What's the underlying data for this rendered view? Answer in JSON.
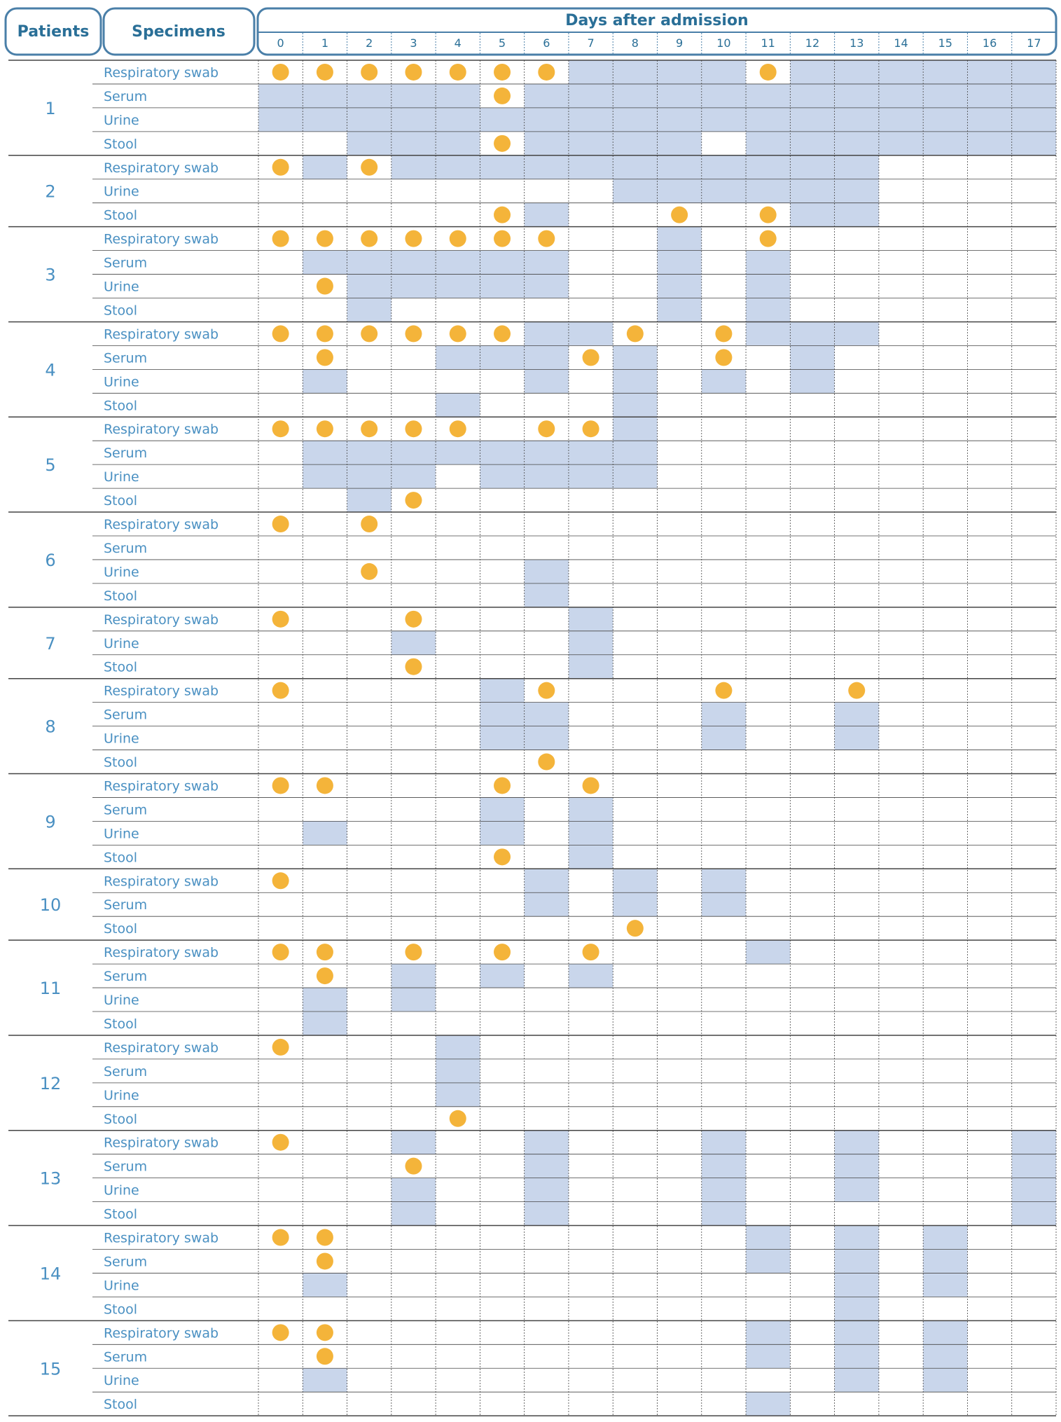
{
  "chart_data": {
    "type": "table",
    "headers": {
      "patients": "Patients",
      "specimens": "Specimens",
      "days_title": "Days after admission"
    },
    "days": [
      "0",
      "1",
      "2",
      "3",
      "4",
      "5",
      "6",
      "7",
      "8",
      "9",
      "10",
      "11",
      "12",
      "13",
      "14",
      "15",
      "16",
      "17"
    ],
    "colors": {
      "header_text": "#2a6f97",
      "label_text": "#4a90c2",
      "shade": "#c9d6eb",
      "dot": "#f4b43a",
      "grid": "#444444",
      "frame": "#4a7fa8"
    },
    "patients": [
      {
        "id": "1",
        "specimens": [
          {
            "name": "Respiratory swab",
            "shaded": [
              7,
              8,
              9,
              10,
              12,
              13,
              14,
              15,
              16,
              17
            ],
            "dots": [
              0,
              1,
              2,
              3,
              4,
              5,
              6,
              11
            ]
          },
          {
            "name": "Serum",
            "shaded": [
              0,
              1,
              2,
              3,
              4,
              6,
              7,
              8,
              9,
              10,
              11,
              12,
              13,
              14,
              15,
              16,
              17
            ],
            "dots": [
              5
            ]
          },
          {
            "name": "Urine",
            "shaded": [
              0,
              1,
              2,
              3,
              4,
              5,
              6,
              7,
              8,
              9,
              10,
              11,
              12,
              13,
              14,
              15,
              16,
              17
            ],
            "dots": []
          },
          {
            "name": "Stool",
            "shaded": [
              2,
              3,
              4,
              6,
              7,
              8,
              9,
              11,
              12,
              13,
              14,
              15,
              16,
              17
            ],
            "dots": [
              5
            ]
          }
        ]
      },
      {
        "id": "2",
        "specimens": [
          {
            "name": "Respiratory swab",
            "shaded": [
              1,
              3,
              4,
              5,
              6,
              7,
              8,
              9,
              10,
              11,
              12,
              13
            ],
            "dots": [
              0,
              2
            ]
          },
          {
            "name": "Urine",
            "shaded": [
              8,
              9,
              10,
              11,
              12,
              13
            ],
            "dots": []
          },
          {
            "name": "Stool",
            "shaded": [
              6,
              12,
              13
            ],
            "dots": [
              5,
              9,
              11
            ]
          }
        ]
      },
      {
        "id": "3",
        "specimens": [
          {
            "name": "Respiratory swab",
            "shaded": [
              9
            ],
            "dots": [
              0,
              1,
              2,
              3,
              4,
              5,
              6,
              11
            ]
          },
          {
            "name": "Serum",
            "shaded": [
              1,
              2,
              3,
              4,
              5,
              6,
              9,
              11
            ],
            "dots": []
          },
          {
            "name": "Urine",
            "shaded": [
              2,
              3,
              4,
              5,
              6,
              9,
              11
            ],
            "dots": [
              1
            ]
          },
          {
            "name": "Stool",
            "shaded": [
              2,
              9,
              11
            ],
            "dots": []
          }
        ]
      },
      {
        "id": "4",
        "specimens": [
          {
            "name": "Respiratory swab",
            "shaded": [
              6,
              7,
              11,
              12,
              13
            ],
            "dots": [
              0,
              1,
              2,
              3,
              4,
              5,
              8,
              10
            ]
          },
          {
            "name": "Serum",
            "shaded": [
              4,
              5,
              6,
              8,
              12
            ],
            "dots": [
              1,
              7,
              10
            ]
          },
          {
            "name": "Urine",
            "shaded": [
              1,
              6,
              8,
              10,
              12
            ],
            "dots": []
          },
          {
            "name": "Stool",
            "shaded": [
              4,
              8
            ],
            "dots": []
          }
        ]
      },
      {
        "id": "5",
        "specimens": [
          {
            "name": "Respiratory swab",
            "shaded": [
              8
            ],
            "dots": [
              0,
              1,
              2,
              3,
              4,
              6,
              7
            ]
          },
          {
            "name": "Serum",
            "shaded": [
              1,
              2,
              3,
              4,
              5,
              6,
              7,
              8
            ],
            "dots": []
          },
          {
            "name": "Urine",
            "shaded": [
              1,
              2,
              3,
              5,
              6,
              7,
              8
            ],
            "dots": []
          },
          {
            "name": "Stool",
            "shaded": [
              2
            ],
            "dots": [
              3
            ]
          }
        ]
      },
      {
        "id": "6",
        "specimens": [
          {
            "name": "Respiratory swab",
            "shaded": [],
            "dots": [
              0,
              2
            ]
          },
          {
            "name": "Serum",
            "shaded": [],
            "dots": []
          },
          {
            "name": "Urine",
            "shaded": [
              6
            ],
            "dots": [
              2
            ]
          },
          {
            "name": "Stool",
            "shaded": [
              6
            ],
            "dots": []
          }
        ]
      },
      {
        "id": "7",
        "specimens": [
          {
            "name": "Respiratory swab",
            "shaded": [
              7
            ],
            "dots": [
              0,
              3
            ]
          },
          {
            "name": "Urine",
            "shaded": [
              3,
              7
            ],
            "dots": []
          },
          {
            "name": "Stool",
            "shaded": [
              7
            ],
            "dots": [
              3
            ]
          }
        ]
      },
      {
        "id": "8",
        "specimens": [
          {
            "name": "Respiratory swab",
            "shaded": [
              5
            ],
            "dots": [
              0,
              6,
              10,
              13
            ]
          },
          {
            "name": "Serum",
            "shaded": [
              5,
              6,
              10,
              13
            ],
            "dots": []
          },
          {
            "name": "Urine",
            "shaded": [
              5,
              6,
              10,
              13
            ],
            "dots": []
          },
          {
            "name": "Stool",
            "shaded": [],
            "dots": [
              6
            ]
          }
        ]
      },
      {
        "id": "9",
        "specimens": [
          {
            "name": "Respiratory swab",
            "shaded": [],
            "dots": [
              0,
              1,
              5,
              7
            ]
          },
          {
            "name": "Serum",
            "shaded": [
              5,
              7
            ],
            "dots": []
          },
          {
            "name": "Urine",
            "shaded": [
              1,
              5,
              7
            ],
            "dots": []
          },
          {
            "name": "Stool",
            "shaded": [
              7
            ],
            "dots": [
              5
            ]
          }
        ]
      },
      {
        "id": "10",
        "specimens": [
          {
            "name": "Respiratory swab",
            "shaded": [
              6,
              8,
              10
            ],
            "dots": [
              0
            ]
          },
          {
            "name": "Serum",
            "shaded": [
              6,
              8,
              10
            ],
            "dots": []
          },
          {
            "name": "Stool",
            "shaded": [],
            "dots": [
              8
            ]
          }
        ]
      },
      {
        "id": "11",
        "specimens": [
          {
            "name": "Respiratory swab",
            "shaded": [
              11
            ],
            "dots": [
              0,
              1,
              3,
              5,
              7
            ]
          },
          {
            "name": "Serum",
            "shaded": [
              3,
              5,
              7
            ],
            "dots": [
              1
            ]
          },
          {
            "name": "Urine",
            "shaded": [
              1,
              3
            ],
            "dots": []
          },
          {
            "name": "Stool",
            "shaded": [
              1
            ],
            "dots": []
          }
        ]
      },
      {
        "id": "12",
        "specimens": [
          {
            "name": "Respiratory swab",
            "shaded": [
              4
            ],
            "dots": [
              0
            ]
          },
          {
            "name": "Serum",
            "shaded": [
              4
            ],
            "dots": []
          },
          {
            "name": "Urine",
            "shaded": [
              4
            ],
            "dots": []
          },
          {
            "name": "Stool",
            "shaded": [],
            "dots": [
              4
            ]
          }
        ]
      },
      {
        "id": "13",
        "specimens": [
          {
            "name": "Respiratory swab",
            "shaded": [
              3,
              6,
              10,
              13,
              17
            ],
            "dots": [
              0
            ]
          },
          {
            "name": "Serum",
            "shaded": [
              6,
              10,
              13,
              17
            ],
            "dots": [
              3
            ]
          },
          {
            "name": "Urine",
            "shaded": [
              3,
              6,
              10,
              13,
              17
            ],
            "dots": []
          },
          {
            "name": "Stool",
            "shaded": [
              3,
              6,
              10,
              17
            ],
            "dots": []
          }
        ]
      },
      {
        "id": "14",
        "specimens": [
          {
            "name": "Respiratory swab",
            "shaded": [
              11,
              13,
              15
            ],
            "dots": [
              0,
              1
            ]
          },
          {
            "name": "Serum",
            "shaded": [
              11,
              13,
              15
            ],
            "dots": [
              1
            ]
          },
          {
            "name": "Urine",
            "shaded": [
              1,
              13,
              15
            ],
            "dots": []
          },
          {
            "name": "Stool",
            "shaded": [
              13
            ],
            "dots": []
          }
        ]
      },
      {
        "id": "15",
        "specimens": [
          {
            "name": "Respiratory swab",
            "shaded": [
              11,
              13,
              15
            ],
            "dots": [
              0,
              1
            ]
          },
          {
            "name": "Serum",
            "shaded": [
              11,
              13,
              15
            ],
            "dots": [
              1
            ]
          },
          {
            "name": "Urine",
            "shaded": [
              1,
              13,
              15
            ],
            "dots": []
          },
          {
            "name": "Stool",
            "shaded": [
              11
            ],
            "dots": []
          }
        ]
      }
    ]
  }
}
